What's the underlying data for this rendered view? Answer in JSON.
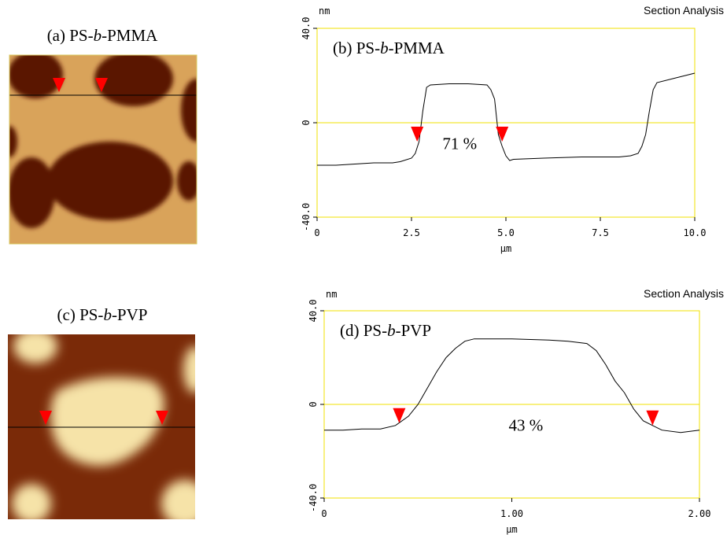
{
  "images": [
    {
      "label": [
        "(a) PS-",
        "b",
        "-PMMA"
      ]
    },
    {
      "label": [
        "(c) PS-",
        "b",
        "-PVP"
      ]
    }
  ],
  "chart_data": [
    {
      "type": "line",
      "title": "Section Analysis",
      "ylabel": "nm",
      "xlabel": "µm",
      "panel_label": [
        "(b) PS-",
        "b",
        "-PMMA"
      ],
      "annotation": "71 %",
      "color": "#000000",
      "axis_color": "#f0e000",
      "marker_color": "#ff0000",
      "x": [
        0,
        0.5,
        1.0,
        1.5,
        2.0,
        2.2,
        2.5,
        2.6,
        2.7,
        2.8,
        2.9,
        3.0,
        3.5,
        4.0,
        4.5,
        4.6,
        4.7,
        4.8,
        4.9,
        5.0,
        5.1,
        5.2,
        6.0,
        7.0,
        8.0,
        8.3,
        8.5,
        8.6,
        8.7,
        8.8,
        8.9,
        9.0,
        9.5,
        10.0
      ],
      "values": [
        -18,
        -18,
        -17.5,
        -17,
        -17,
        -16.5,
        -15,
        -13,
        -8,
        5,
        15,
        16,
        16.5,
        16.5,
        16,
        14,
        10,
        -5,
        -10,
        -14,
        -16,
        -15.5,
        -15,
        -14.5,
        -14.5,
        -14,
        -13,
        -10,
        -5,
        5,
        14,
        17,
        19,
        21
      ],
      "markers": [
        {
          "x": 2.65,
          "y": -8
        },
        {
          "x": 4.9,
          "y": -8
        }
      ],
      "xlim": [
        0,
        10
      ],
      "ylim": [
        -40,
        40
      ],
      "xticks": [
        0,
        2.5,
        {
          "value": 5,
          "label": "5.0"
        },
        7.5,
        {
          "value": 10,
          "label": "10.0"
        }
      ],
      "yticks": [
        {
          "value": -40,
          "label": "-40.0"
        },
        0,
        {
          "value": 40,
          "label": "40.0"
        }
      ]
    },
    {
      "type": "line",
      "title": "Section Analysis",
      "ylabel": "nm",
      "xlabel": "µm",
      "panel_label": [
        "(d) PS-",
        "b",
        "-PVP"
      ],
      "annotation": "43 %",
      "color": "#000000",
      "axis_color": "#f0e000",
      "marker_color": "#ff0000",
      "x": [
        0,
        0.1,
        0.2,
        0.3,
        0.38,
        0.45,
        0.5,
        0.55,
        0.6,
        0.65,
        0.7,
        0.75,
        0.8,
        1.0,
        1.2,
        1.3,
        1.4,
        1.45,
        1.5,
        1.55,
        1.6,
        1.65,
        1.7,
        1.75,
        1.8,
        1.9,
        2.0
      ],
      "values": [
        -11,
        -11,
        -10.5,
        -10.5,
        -9,
        -5,
        0,
        7,
        14,
        20,
        24,
        27,
        28,
        28,
        27.5,
        27,
        26,
        23,
        17,
        10,
        5,
        -2,
        -7,
        -9,
        -11,
        -12,
        -11
      ],
      "markers": [
        {
          "x": 0.4,
          "y": -8
        },
        {
          "x": 1.75,
          "y": -9
        }
      ],
      "xlim": [
        0,
        2
      ],
      "ylim": [
        -40,
        40
      ],
      "xticks": [
        0,
        {
          "value": 1,
          "label": "1.00"
        },
        {
          "value": 2,
          "label": "2.00"
        }
      ],
      "yticks": [
        {
          "value": -40,
          "label": "-40.0"
        },
        0,
        {
          "value": 40,
          "label": "40.0"
        }
      ]
    }
  ]
}
